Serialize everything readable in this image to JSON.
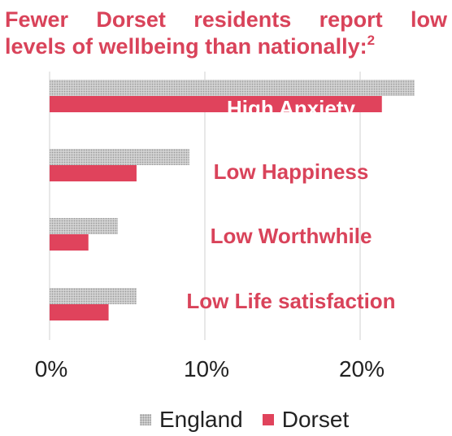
{
  "title": {
    "line1": "Fewer Dorset residents report low",
    "line2": "levels of wellbeing than nationally:",
    "superscript": "2"
  },
  "chart_data": {
    "type": "bar",
    "orientation": "horizontal",
    "categories": [
      "High Anxiety",
      "Low Happiness",
      "Low Worthwhile",
      "Low Life satisfaction"
    ],
    "series": [
      {
        "name": "England",
        "values": [
          23.5,
          9.0,
          4.4,
          5.6
        ],
        "color": "#d4d4d4",
        "pattern": "dotted"
      },
      {
        "name": "Dorset",
        "values": [
          21.4,
          5.6,
          2.5,
          3.8
        ],
        "color": "#e0435c"
      }
    ],
    "xlim": [
      0,
      25
    ],
    "xticks": [
      0,
      10,
      20
    ],
    "xtick_labels": [
      "0%",
      "10%",
      "20%"
    ],
    "grid": true,
    "legend_position": "bottom",
    "label_color": "#d9435a"
  }
}
